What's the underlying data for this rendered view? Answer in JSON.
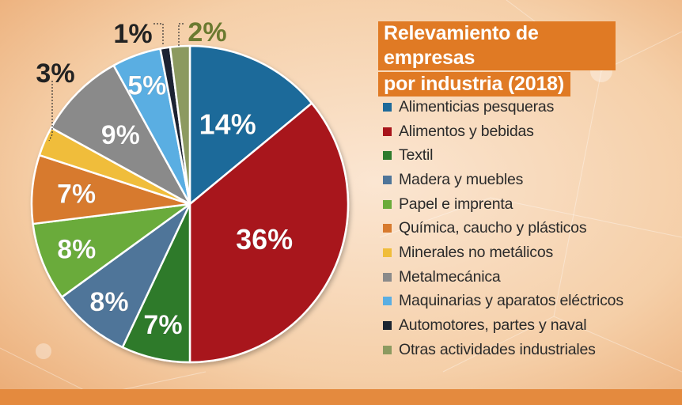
{
  "chart_data": {
    "type": "pie",
    "title": "Relevamiento de empresas por industria (2018)",
    "title_lines": [
      "Relevamiento de empresas",
      "por industria (2018)"
    ],
    "slices": [
      {
        "label": "Alimenticias pesqueras",
        "value": 14,
        "value_label": "14%",
        "color": "#1e6a9a"
      },
      {
        "label": "Alimentos y bebidas",
        "value": 36,
        "value_label": "36%",
        "color": "#a8141a"
      },
      {
        "label": "Textil",
        "value": 7,
        "value_label": "7%",
        "color": "#2e7a2c"
      },
      {
        "label": "Madera y muebles",
        "value": 8,
        "value_label": "8%",
        "color": "#4f7599"
      },
      {
        "label": "Papel e imprenta",
        "value": 8,
        "value_label": "8%",
        "color": "#6aab3a"
      },
      {
        "label": "Química, caucho y plásticos",
        "value": 7,
        "value_label": "7%",
        "color": "#d77a2e"
      },
      {
        "label": "Minerales no metálicos",
        "value": 3,
        "value_label": "3%",
        "color": "#f0bd3a"
      },
      {
        "label": "Metalmecánica",
        "value": 9,
        "value_label": "9%",
        "color": "#8a8a8a"
      },
      {
        "label": "Maquinarias y aparatos eléctricos",
        "value": 5,
        "value_label": "5%",
        "color": "#5aaee2"
      },
      {
        "label": "Automotores, partes y naval",
        "value": 1,
        "value_label": "1%",
        "color": "#1a2430"
      },
      {
        "label": "Otras actividades industriales",
        "value": 2,
        "value_label": "2%",
        "color": "#8c9a60"
      }
    ],
    "legend_position": "right"
  }
}
